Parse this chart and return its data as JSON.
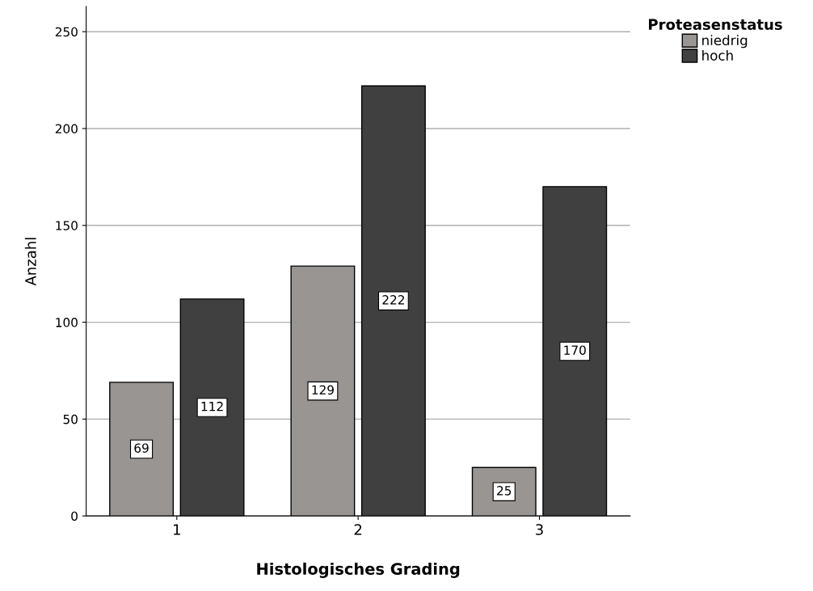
{
  "chart_data": {
    "type": "bar",
    "xlabel": "Histologisches Grading",
    "ylabel": "Anzahl",
    "legend_title": "Proteasenstatus",
    "categories": [
      "1",
      "2",
      "3"
    ],
    "series": [
      {
        "name": "niedrig",
        "color": "#999593",
        "values": [
          69,
          129,
          25
        ]
      },
      {
        "name": "hoch",
        "color": "#404040",
        "values": [
          112,
          222,
          170
        ]
      }
    ],
    "ylim": [
      0,
      263
    ],
    "yticks": [
      0,
      50,
      100,
      150,
      200,
      250
    ],
    "grid": "y",
    "legend": "top right",
    "data_labels": true
  }
}
